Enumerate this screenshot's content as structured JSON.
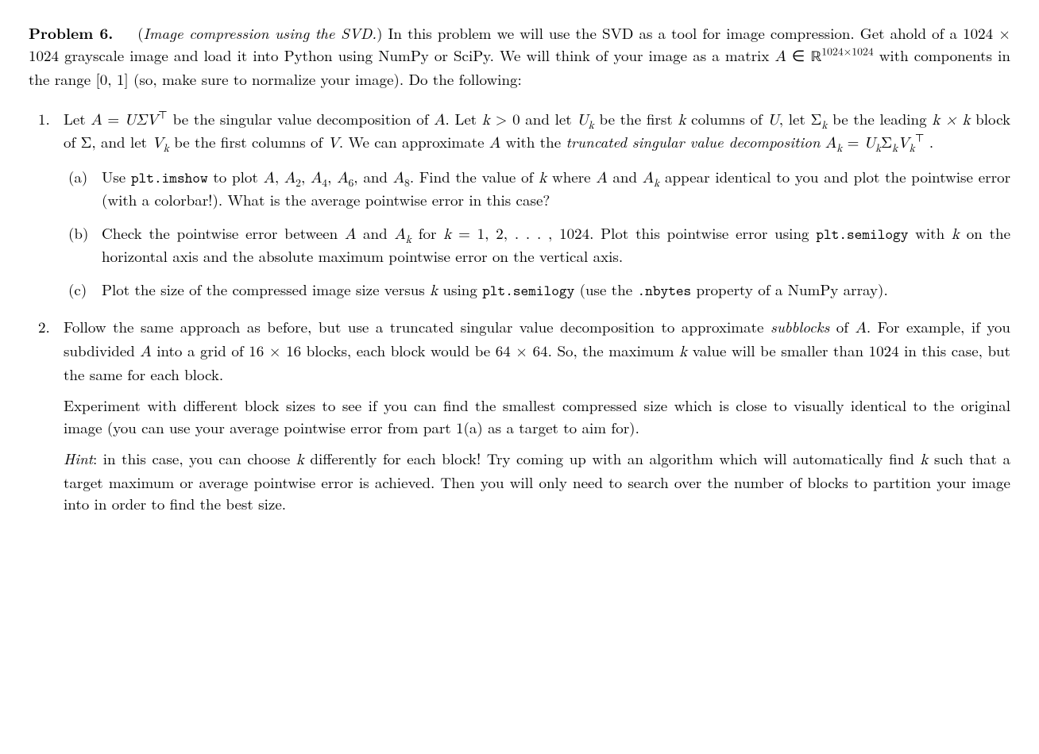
{
  "problem": {
    "label": "Problem 6.",
    "title": "Image compression using the SVD.",
    "intro_part1": " In this problem we will use the SVD as a tool for image compression. Get ahold of a 1024 × 1024 grayscale image and load it into Python using NumPy or SciPy. We will think of your image as a matrix ",
    "matrix_A": "A",
    "in_sym": " ∈ ",
    "space_R": "ℝ",
    "dims_sup": "1024×1024",
    "intro_part2": " with components in the range [0, 1] (so, make sure to normalize your image). Do the following:"
  },
  "item1": {
    "marker": "1.",
    "text_part1": "Let ",
    "eq1_lhs": "A",
    "eq1_eq": " = ",
    "eq1_rhs": "UΣV",
    "eq1_sup": "⊤",
    "text_part2": " be the singular value decomposition of ",
    "A": "A",
    "text_part3": ". Let ",
    "k": "k",
    "gt0": " > 0",
    "text_part4": " and let ",
    "Uk": "U",
    "Uk_sub": "k",
    "text_part5": " be the first ",
    "text_part6": " columns of ",
    "U": "U",
    "text_part7": ", let ",
    "Sigma_k": "Σ",
    "text_part8": " be the leading ",
    "kxk": "k × k",
    "text_part9": " block of ",
    "Sigma": "Σ",
    "text_part10": ", and let ",
    "Vk": "V",
    "text_part11": " be the first columns of ",
    "V": "V",
    "text_part12": ". We can approximate ",
    "text_part13": " with the ",
    "trunc_phrase": "truncated singular value decomposition",
    "space": " ",
    "Ak": "A",
    "Ak_sub": "k",
    "eq2_eq": " = ",
    "eq2_U": "U",
    "eq2_Sigma": "Σ",
    "eq2_V": "V",
    "eq2_sup": "⊤",
    "period": " ."
  },
  "item1a": {
    "marker": "(a)",
    "t1": "Use ",
    "code1": "plt.imshow",
    "t2": " to plot ",
    "A": "A",
    "comma": ", ",
    "A2": "A",
    "s2": "2",
    "A4": "A",
    "s4": "4",
    "A6": "A",
    "s6": "6",
    "and": ", and ",
    "A8": "A",
    "s8": "8",
    "t3": ". Find the value of ",
    "k": "k",
    "t4": " where ",
    "t5": " and ",
    "Ak": "A",
    "sk": "k",
    "t6": " appear identical to you and plot the pointwise error (with a colorbar!). What is the average pointwise error in this case?"
  },
  "item1b": {
    "marker": "(b)",
    "t1": "Check the pointwise error between ",
    "A": "A",
    "t2": " and ",
    "Ak": "A",
    "sk": "k",
    "t3": " for ",
    "k": "k",
    "eq": " = 1, 2, . . . , 1024",
    "t4": ". Plot this pointwise error using ",
    "code1": "plt.semilogy",
    "t5": " with ",
    "t6": " on the horizontal axis and the absolute maximum pointwise error on the vertical axis."
  },
  "item1c": {
    "marker": "(c)",
    "t1": "Plot the size of the compressed image size versus ",
    "k": "k",
    "t2": " using ",
    "code1": "plt.semilogy",
    "t3": " (use the ",
    "code2": ".nbytes",
    "t4": " property of a NumPy array)."
  },
  "item2": {
    "marker": "2.",
    "p1_t1": "Follow the same approach as before, but use a truncated singular value decomposition to approximate ",
    "subblocks": "subblocks",
    "p1_t2": " of ",
    "A": "A",
    "p1_t3": ". For example, if you subdivided ",
    "p1_t4": " into a grid of 16 × 16 blocks, each block would be 64 × 64. So, the maximum ",
    "k": "k",
    "p1_t5": " value will be smaller than 1024 in this case, but the same for each block.",
    "p2": "Experiment with different block sizes to see if you can find the smallest compressed size which is close to visually identical to the original image (you can use your average pointwise error from part 1(a) as a target to aim for).",
    "hint_label": "Hint",
    "p3_t1": ": in this case, you can choose ",
    "p3_t2": " differently for each block! Try coming up with an algorithm which will automatically find ",
    "p3_t3": " such that a target maximum or average pointwise error is achieved. Then you will only need to search over the number of blocks to partition your image into in order to find the best size."
  }
}
